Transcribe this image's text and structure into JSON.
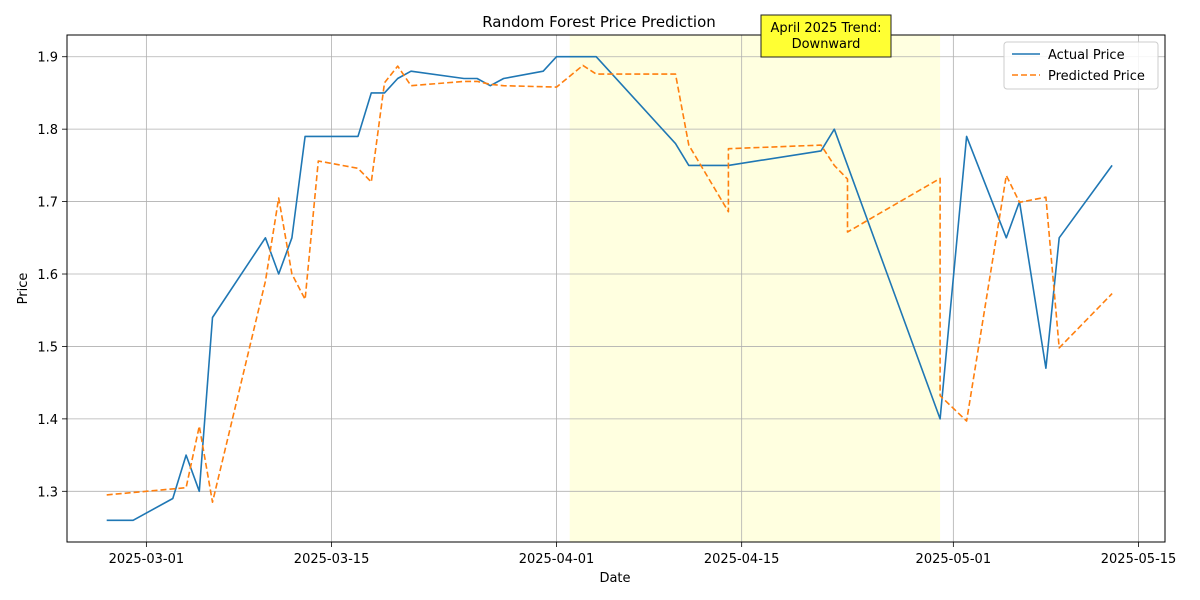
{
  "chart_data": {
    "type": "line",
    "title": "Random Forest Price Prediction",
    "xlabel": "Date",
    "ylabel": "Price",
    "xlim": [
      "2025-02-23",
      "2025-05-17"
    ],
    "ylim": [
      1.23,
      1.93
    ],
    "x_ticks": [
      "2025-03-01",
      "2025-03-15",
      "2025-04-01",
      "2025-04-15",
      "2025-05-01",
      "2025-05-15"
    ],
    "y_ticks": [
      1.3,
      1.4,
      1.5,
      1.6,
      1.7,
      1.8,
      1.9
    ],
    "grid": true,
    "legend_position": "top-right",
    "highlight_span": {
      "start": "2025-04-02",
      "end": "2025-04-30",
      "color": "#ffffe0"
    },
    "annotation": {
      "text_lines": [
        "April 2025 Trend:",
        "Downward"
      ],
      "background": "#ffff33"
    },
    "series": [
      {
        "name": "Actual Price",
        "color": "#1f77b4",
        "style": "solid",
        "points": [
          [
            "2025-02-26",
            1.26
          ],
          [
            "2025-02-28",
            1.26
          ],
          [
            "2025-03-03",
            1.29
          ],
          [
            "2025-03-04",
            1.35
          ],
          [
            "2025-03-05",
            1.3
          ],
          [
            "2025-03-06",
            1.54
          ],
          [
            "2025-03-10",
            1.65
          ],
          [
            "2025-03-11",
            1.6
          ],
          [
            "2025-03-12",
            1.65
          ],
          [
            "2025-03-13",
            1.79
          ],
          [
            "2025-03-17",
            1.79
          ],
          [
            "2025-03-18",
            1.85
          ],
          [
            "2025-03-19",
            1.85
          ],
          [
            "2025-03-20",
            1.87
          ],
          [
            "2025-03-21",
            1.88
          ],
          [
            "2025-03-25",
            1.87
          ],
          [
            "2025-03-26",
            1.87
          ],
          [
            "2025-03-27",
            1.86
          ],
          [
            "2025-03-28",
            1.87
          ],
          [
            "2025-03-31",
            1.88
          ],
          [
            "2025-04-01",
            1.9
          ],
          [
            "2025-04-04",
            1.9
          ],
          [
            "2025-04-10",
            1.78
          ],
          [
            "2025-04-11",
            1.75
          ],
          [
            "2025-04-14",
            1.75
          ],
          [
            "2025-04-21",
            1.77
          ],
          [
            "2025-04-22",
            1.8
          ],
          [
            "2025-04-30",
            1.4
          ],
          [
            "2025-05-02",
            1.79
          ],
          [
            "2025-05-05",
            1.65
          ],
          [
            "2025-05-06",
            1.7
          ],
          [
            "2025-05-08",
            1.47
          ],
          [
            "2025-05-09",
            1.65
          ],
          [
            "2025-05-13",
            1.75
          ]
        ]
      },
      {
        "name": "Predicted Price",
        "color": "#ff7f0e",
        "style": "dashed",
        "points": [
          [
            "2025-02-26",
            1.295
          ],
          [
            "2025-03-04",
            1.305
          ],
          [
            "2025-03-05",
            1.39
          ],
          [
            "2025-03-06",
            1.285
          ],
          [
            "2025-03-10",
            1.59
          ],
          [
            "2025-03-11",
            1.705
          ],
          [
            "2025-03-12",
            1.6
          ],
          [
            "2025-03-13",
            1.565
          ],
          [
            "2025-03-14",
            1.756
          ],
          [
            "2025-03-17",
            1.746
          ],
          [
            "2025-03-18",
            1.727
          ],
          [
            "2025-03-19",
            1.864
          ],
          [
            "2025-03-20",
            1.887
          ],
          [
            "2025-03-21",
            1.86
          ],
          [
            "2025-03-25",
            1.866
          ],
          [
            "2025-03-26",
            1.866
          ],
          [
            "2025-03-27",
            1.862
          ],
          [
            "2025-03-28",
            1.86
          ],
          [
            "2025-04-01",
            1.858
          ],
          [
            "2025-04-03",
            1.888
          ],
          [
            "2025-04-04",
            1.876
          ],
          [
            "2025-04-10",
            1.876
          ],
          [
            "2025-04-11",
            1.778
          ],
          [
            "2025-04-14",
            1.686
          ],
          [
            "2025-04-14",
            1.773
          ],
          [
            "2025-04-21",
            1.778
          ],
          [
            "2025-04-22",
            1.75
          ],
          [
            "2025-04-23",
            1.731
          ],
          [
            "2025-04-23",
            1.658
          ],
          [
            "2025-04-30",
            1.732
          ],
          [
            "2025-04-30",
            1.432
          ],
          [
            "2025-05-02",
            1.397
          ],
          [
            "2025-05-05",
            1.736
          ],
          [
            "2025-05-06",
            1.699
          ],
          [
            "2025-05-08",
            1.706
          ],
          [
            "2025-05-09",
            1.498
          ],
          [
            "2025-05-13",
            1.573
          ]
        ]
      }
    ]
  }
}
